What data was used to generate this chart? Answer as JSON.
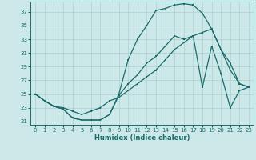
{
  "xlabel": "Humidex (Indice chaleur)",
  "bg_color": "#cce8e8",
  "grid_color": "#afd0d0",
  "line_color": "#1a6b6b",
  "xlim": [
    -0.5,
    23.5
  ],
  "ylim": [
    20.5,
    38.5
  ],
  "xticks": [
    0,
    1,
    2,
    3,
    4,
    5,
    6,
    7,
    8,
    9,
    10,
    11,
    12,
    13,
    14,
    15,
    16,
    17,
    18,
    19,
    20,
    21,
    22,
    23
  ],
  "yticks": [
    21,
    23,
    25,
    27,
    29,
    31,
    33,
    35,
    37
  ],
  "line1_x": [
    0,
    1,
    2,
    3,
    4,
    5,
    6,
    7,
    8,
    9,
    10,
    11,
    12,
    13,
    14,
    15,
    16,
    17,
    18,
    19,
    20,
    21,
    22,
    23
  ],
  "line1_y": [
    25.0,
    24.0,
    23.2,
    22.8,
    21.5,
    21.2,
    21.2,
    21.2,
    22.0,
    24.8,
    26.5,
    27.8,
    29.5,
    30.5,
    32.0,
    33.5,
    33.0,
    33.5,
    26.0,
    32.0,
    28.0,
    23.0,
    25.5,
    26.0
  ],
  "line2_x": [
    0,
    1,
    2,
    3,
    4,
    5,
    6,
    7,
    8,
    9,
    10,
    11,
    12,
    13,
    14,
    15,
    16,
    17,
    18,
    19,
    20,
    21,
    22,
    23
  ],
  "line2_y": [
    25.0,
    24.0,
    23.2,
    23.0,
    22.5,
    22.0,
    22.5,
    23.0,
    24.0,
    24.5,
    25.5,
    26.5,
    27.5,
    28.5,
    30.0,
    31.5,
    32.5,
    33.5,
    34.0,
    34.5,
    31.5,
    28.5,
    26.5,
    26.0
  ],
  "line3_x": [
    0,
    1,
    2,
    3,
    4,
    5,
    6,
    7,
    8,
    9,
    10,
    11,
    12,
    13,
    14,
    15,
    16,
    17,
    18,
    19,
    20,
    21,
    22,
    23
  ],
  "line3_y": [
    25.0,
    24.0,
    23.2,
    22.8,
    21.5,
    21.2,
    21.2,
    21.2,
    22.0,
    25.0,
    30.0,
    33.0,
    35.0,
    37.2,
    37.5,
    38.0,
    38.2,
    38.0,
    36.8,
    34.5,
    31.5,
    29.5,
    26.5,
    26.0
  ]
}
